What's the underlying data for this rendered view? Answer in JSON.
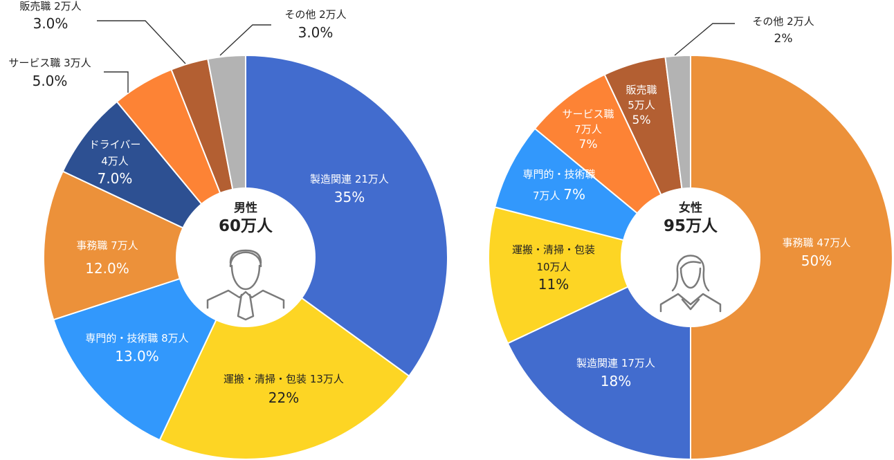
{
  "chart_data": [
    {
      "type": "pie",
      "center_title": "男性",
      "center_total": "60万人",
      "slices": [
        {
          "category": "製造関連",
          "count": "21万人",
          "percent": "35%",
          "value": 35,
          "color": "#426cce"
        },
        {
          "category": "運搬・清掃・包装",
          "count": "13万人",
          "percent": "22%",
          "value": 22,
          "color": "#fdd524"
        },
        {
          "category": "専門的・技術職",
          "count": "8万人",
          "percent": "13.0%",
          "value": 13,
          "color": "#3298fc"
        },
        {
          "category": "事務職",
          "count": "7万人",
          "percent": "12.0%",
          "value": 12,
          "color": "#ec913a"
        },
        {
          "category": "ドライバー",
          "count": "4万人",
          "percent": "7.0%",
          "value": 7,
          "color": "#2d5092"
        },
        {
          "category": "サービス職",
          "count": "3万人",
          "percent": "5.0%",
          "value": 5,
          "color": "#fd8335"
        },
        {
          "category": "販売職",
          "count": "2万人",
          "percent": "3.0%",
          "value": 3,
          "color": "#b35f32"
        },
        {
          "category": "その他",
          "count": "2万人",
          "percent": "3.0%",
          "value": 3,
          "color": "#b3b3b3"
        }
      ]
    },
    {
      "type": "pie",
      "center_title": "女性",
      "center_total": "95万人",
      "slices": [
        {
          "category": "事務職",
          "count": "47万人",
          "percent": "50%",
          "value": 50,
          "color": "#ec913a"
        },
        {
          "category": "製造関連",
          "count": "17万人",
          "percent": "18%",
          "value": 18,
          "color": "#426cce"
        },
        {
          "category": "運搬・清掃・包装",
          "count": "10万人",
          "percent": "11%",
          "value": 11,
          "color": "#fdd524"
        },
        {
          "category": "専門的・技術職",
          "count": "7万人",
          "percent": "7%",
          "value": 7,
          "color": "#3298fc"
        },
        {
          "category": "サービス職",
          "count": "7万人",
          "percent": "7%",
          "value": 7,
          "color": "#fd8335"
        },
        {
          "category": "販売職",
          "count": "5万人",
          "percent": "5%",
          "value": 5,
          "color": "#b35f32"
        },
        {
          "category": "その他",
          "count": "2万人",
          "percent": "2%",
          "value": 2,
          "color": "#b3b3b3"
        }
      ]
    }
  ],
  "icons": {
    "male": "male-person-icon",
    "female": "female-person-icon"
  }
}
